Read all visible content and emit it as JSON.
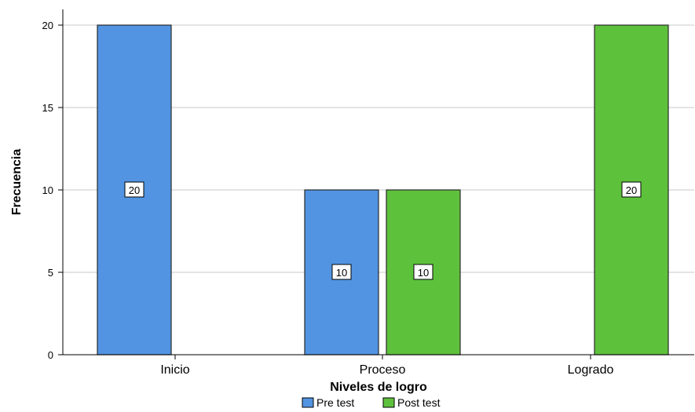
{
  "colors": {
    "pre_test": "#5294e2",
    "post_test": "#5ec13c",
    "grid": "#c8c8c8",
    "bar_stroke": "#2b2b2b"
  },
  "chart_data": {
    "type": "bar",
    "categories": [
      "Inicio",
      "Proceso",
      "Logrado"
    ],
    "series": [
      {
        "name": "Pre test",
        "values": [
          20,
          10,
          0
        ]
      },
      {
        "name": "Post test",
        "values": [
          0,
          10,
          20
        ]
      }
    ],
    "xlabel": "Niveles de logro",
    "ylabel": "Frecuencia",
    "ylim": [
      0,
      20
    ],
    "yticks": [
      0,
      5,
      10,
      15,
      20
    ],
    "grid": true,
    "legend": "bottom-center",
    "data_labels": true
  }
}
